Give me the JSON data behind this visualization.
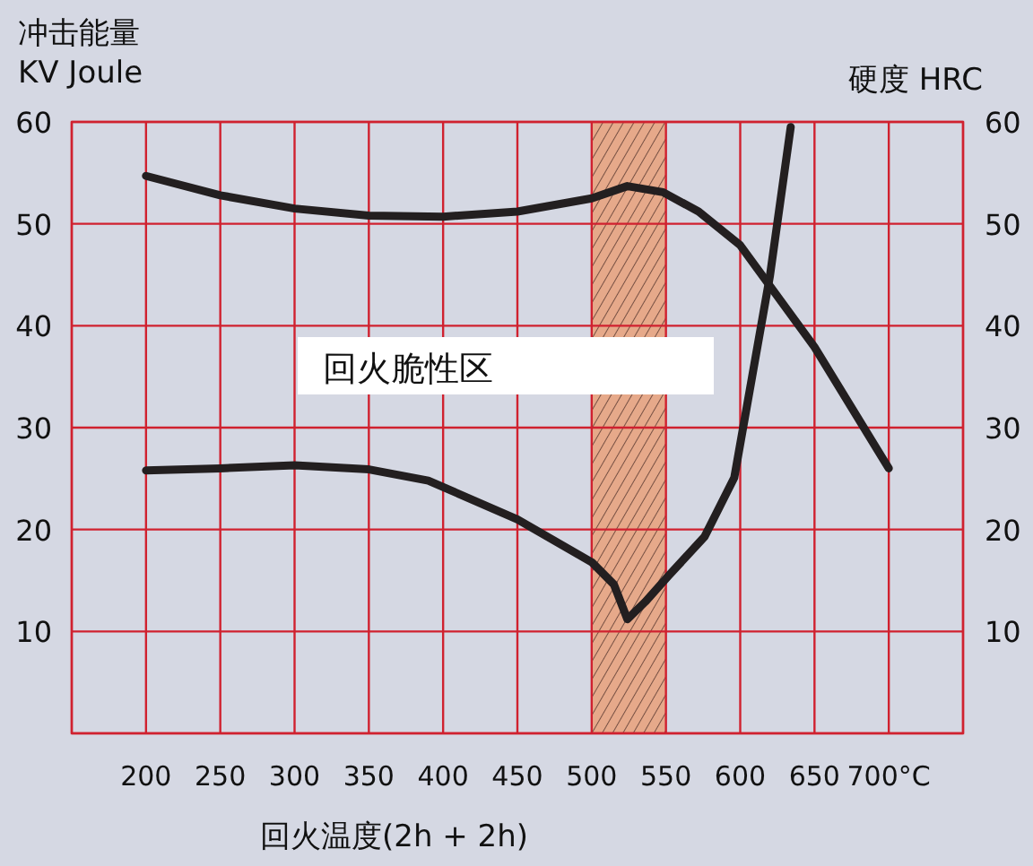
{
  "chart_data": {
    "type": "line",
    "xlabel": "回火温度(2h + 2h)",
    "ylabel": "冲击能量 KV Joule",
    "y2label": "硬度 HRC",
    "x": [
      200,
      250,
      300,
      350,
      400,
      450,
      500,
      524,
      548,
      572,
      600,
      650,
      700
    ],
    "series": [
      {
        "color": "#231f20",
        "values": [
          54.7,
          52.8,
          51.5,
          50.8,
          50.7,
          51.2,
          52.5,
          53.7,
          53.1,
          51.2,
          47.9,
          37.9,
          26.0
        ]
      },
      {
        "color": "#231f20",
        "x": [
          200,
          250,
          300,
          350,
          390,
          450,
          500,
          515,
          524,
          536,
          552,
          576,
          596,
          608,
          620,
          634
        ],
        "values": [
          25.8,
          26.0,
          26.3,
          25.9,
          24.8,
          21.0,
          16.8,
          14.6,
          11.2,
          12.9,
          15.5,
          19.3,
          25.1,
          35.0,
          44.9,
          59.5
        ]
      }
    ],
    "xlim": [
      150,
      750
    ],
    "xticks": [
      {
        "value": 150,
        "label": null
      },
      200,
      250,
      300,
      350,
      400,
      450,
      500,
      550,
      600,
      650,
      {
        "value": 700,
        "label": "700°C"
      },
      {
        "value": 750,
        "label": null
      }
    ],
    "ylim": [
      0,
      60
    ],
    "yticks": [
      {
        "value": 0,
        "label": null
      },
      10,
      20,
      30,
      40,
      50,
      60
    ],
    "y2lim": [
      0,
      60
    ],
    "y2ticks": [
      10,
      20,
      30,
      40,
      50,
      60
    ],
    "bands": [
      {
        "axis": "x",
        "from": 500,
        "to": 550,
        "color": "#e6a98a"
      }
    ],
    "annotations": [
      "回火脆性区"
    ],
    "grid": true,
    "marker": "none",
    "line_style": "solid"
  }
}
